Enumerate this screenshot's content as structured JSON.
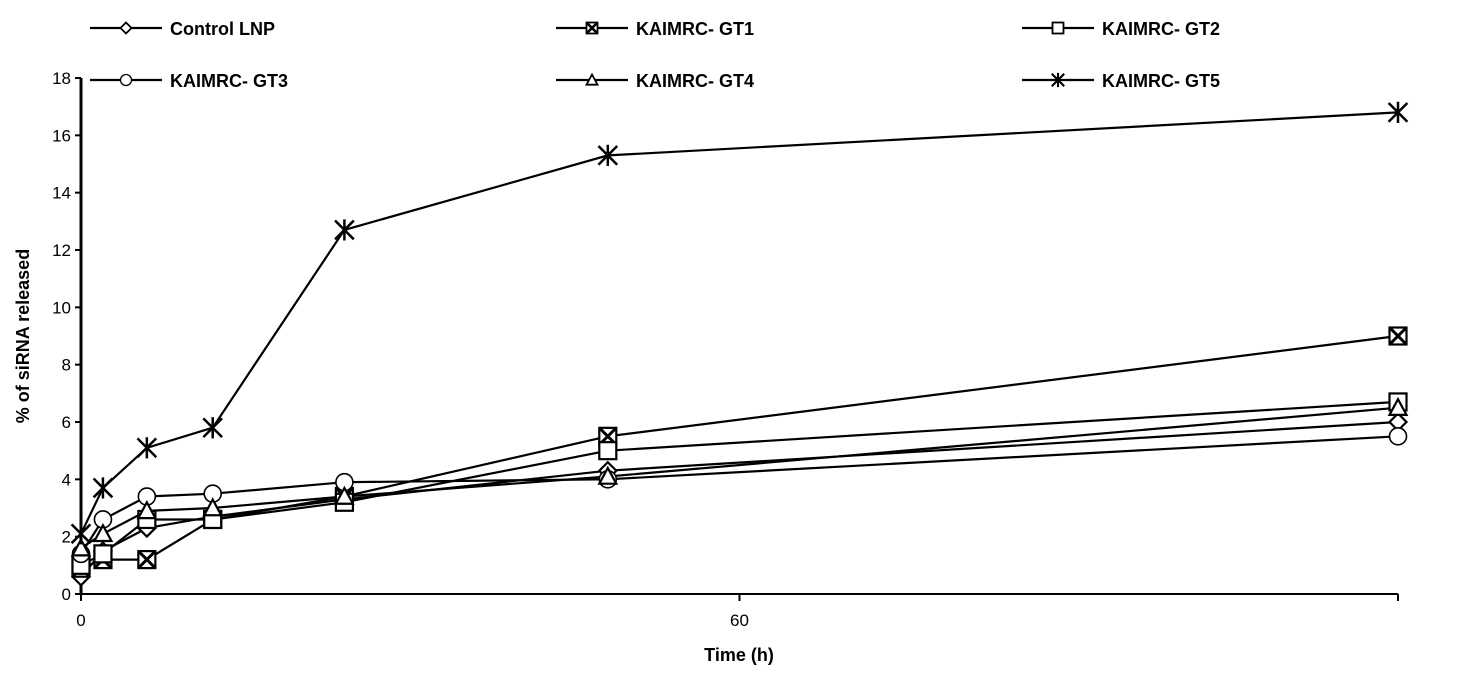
{
  "chart_data": {
    "type": "line",
    "title": "",
    "xlabel": "Time (h)",
    "ylabel": "% of siRNA released",
    "xlim": [
      0,
      120
    ],
    "ylim": [
      0,
      18
    ],
    "x_ticks": [
      0,
      60
    ],
    "y_ticks": [
      0,
      2,
      4,
      6,
      8,
      10,
      12,
      14,
      16,
      18
    ],
    "grid": false,
    "legend_position": "top",
    "x": [
      0,
      2,
      6,
      12,
      24,
      48,
      120
    ],
    "series": [
      {
        "name": "Control LNP",
        "marker": "diamond",
        "values": [
          0.6,
          1.5,
          2.3,
          2.7,
          3.3,
          4.3,
          6.0
        ]
      },
      {
        "name": "KAIMRC- GT1",
        "marker": "boxed-x",
        "values": [
          0.9,
          1.2,
          1.2,
          2.6,
          3.4,
          5.5,
          9.0
        ]
      },
      {
        "name": "KAIMRC- GT2",
        "marker": "square",
        "values": [
          1.0,
          1.4,
          2.6,
          2.6,
          3.2,
          5.0,
          6.7
        ]
      },
      {
        "name": "KAIMRC- GT3",
        "marker": "circle",
        "values": [
          1.4,
          2.6,
          3.4,
          3.5,
          3.9,
          4.0,
          5.5
        ]
      },
      {
        "name": "KAIMRC- GT4",
        "marker": "triangle",
        "values": [
          1.6,
          2.1,
          2.9,
          3.0,
          3.4,
          4.1,
          6.5
        ]
      },
      {
        "name": "KAIMRC- GT5",
        "marker": "star",
        "values": [
          2.1,
          3.7,
          5.1,
          5.8,
          12.7,
          15.3,
          16.8
        ]
      }
    ]
  }
}
